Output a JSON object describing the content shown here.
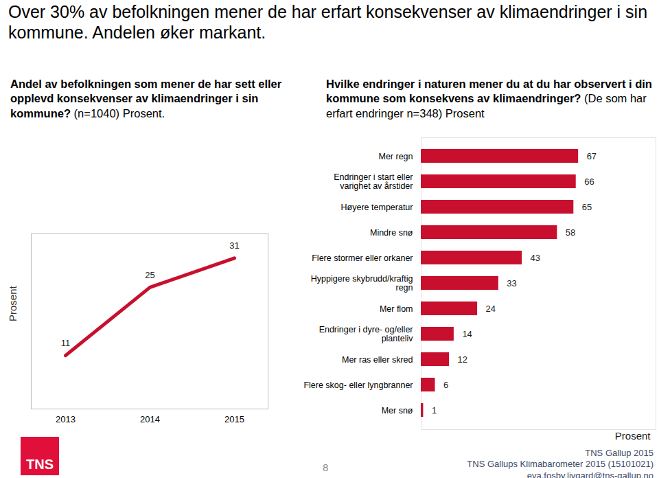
{
  "title": "Over 30% av befolkningen mener de har erfart konsekvenser av klimaendringer i sin kommune. Andelen øker markant.",
  "chart_data": [
    {
      "type": "line",
      "title": "Andel av befolkningen som mener de har sett eller opplevd konsekvenser av klimaendringer i sin kommune?",
      "subtitle": "(n=1040) Prosent.",
      "categories": [
        "2013",
        "2014",
        "2015"
      ],
      "values": [
        11,
        25,
        31
      ],
      "ylabel": "Prosent",
      "ylim": [
        0,
        36
      ],
      "color": "#c8102e",
      "data_labels": true,
      "tick_labels": "x"
    },
    {
      "type": "bar",
      "orientation": "horizontal",
      "title": "Hvilke endringer i naturen mener du at du har observert i din kommune som konsekvens av klimaendringer?",
      "subtitle": "(De som har erfart endringer n=348) Prosent",
      "categories": [
        "Mer regn",
        "Endringer i start eller varighet av årstider",
        "Høyere temperatur",
        "Mindre snø",
        "Flere stormer eller orkaner",
        "Hyppigere skybrudd/kraftig regn",
        "Mer flom",
        "Endringer i dyre- og/eller planteliv",
        "Mer ras eller skred",
        "Flere skog- eller lyngbranner",
        "Mer snø"
      ],
      "values": [
        67,
        66,
        65,
        58,
        43,
        33,
        24,
        14,
        12,
        6,
        1
      ],
      "xlabel": "Prosent",
      "xlim": [
        0,
        100
      ],
      "color": "#c8102e",
      "data_labels": true,
      "tick_labels": "y"
    }
  ],
  "footer": {
    "logo": "TNS",
    "page": 8,
    "lines": [
      "TNS Gallup 2015",
      "TNS Gallups Klimabarometer 2015 (15101021)",
      "eva.fosby.livgard@tns-gallup.no"
    ]
  }
}
